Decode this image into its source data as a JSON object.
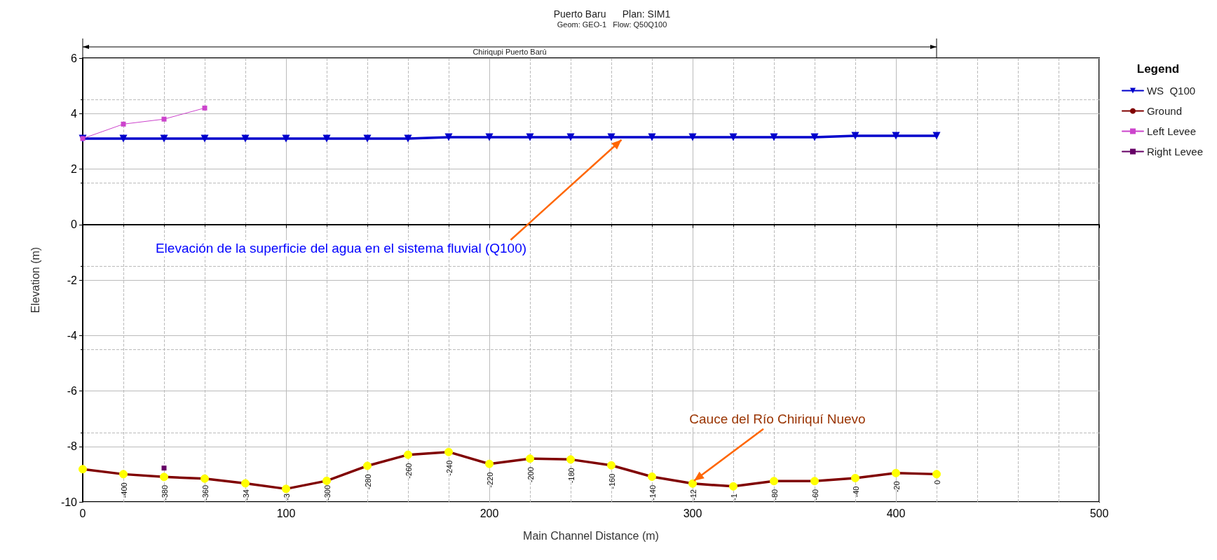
{
  "chart_data": {
    "type": "line",
    "title": "Puerto Baru      Plan: SIM1",
    "subtitle": "Geom: GEO-1   Flow: Q50Q100",
    "xlabel": "Main Channel Distance (m)",
    "ylabel": "Elevation (m)",
    "legend_title": "Legend",
    "x": [
      0,
      20,
      40,
      60,
      80,
      100,
      120,
      140,
      160,
      180,
      200,
      220,
      240,
      260,
      280,
      300,
      320,
      340,
      360,
      380,
      400,
      420
    ],
    "series": [
      {
        "name": "WS  Q100",
        "color": "#0000cc",
        "marker": "triangle",
        "values": [
          3.1,
          3.1,
          3.1,
          3.1,
          3.1,
          3.1,
          3.1,
          3.1,
          3.1,
          3.15,
          3.15,
          3.15,
          3.15,
          3.15,
          3.15,
          3.15,
          3.15,
          3.15,
          3.15,
          3.2,
          3.2,
          3.2
        ]
      },
      {
        "name": "Ground",
        "color": "#800000",
        "marker": "circle",
        "values": [
          -8.82,
          -9.0,
          -9.1,
          -9.16,
          -9.33,
          -9.53,
          -9.24,
          -8.7,
          -8.3,
          -8.2,
          -8.63,
          -8.44,
          -8.47,
          -8.68,
          -9.09,
          -9.34,
          -9.44,
          -9.25,
          -9.25,
          -9.14,
          -8.96,
          -9.0
        ]
      },
      {
        "name": "Left Levee",
        "color": "#cc44cc",
        "marker": "square",
        "values": [
          3.1,
          3.62,
          3.8,
          4.2,
          null,
          null,
          null,
          null,
          null,
          null,
          null,
          null,
          null,
          null,
          null,
          null,
          null,
          null,
          null,
          null,
          null,
          null
        ]
      },
      {
        "name": "Right Levee",
        "color": "#660066",
        "marker": "square",
        "values": [
          null,
          null,
          -8.78,
          null,
          null,
          null,
          null,
          null,
          null,
          null,
          null,
          null,
          null,
          null,
          null,
          null,
          null,
          null,
          null,
          null,
          null,
          null
        ]
      }
    ],
    "xlim": [
      0,
      500
    ],
    "xticks": [
      0,
      100,
      200,
      300,
      400,
      500
    ],
    "ylim": [
      -10,
      6
    ],
    "yticks": [
      -10,
      -8,
      -6,
      -4,
      -2,
      0,
      2,
      4,
      6
    ],
    "grid": true,
    "legend": "right",
    "line_style": "solid",
    "annotations": [
      {
        "text": "Elevación de la superficie del agua en el sistema fluvial (Q100)",
        "x": 265,
        "y": 3.13
      },
      {
        "text": "Cauce del Río Chiriquí Nuevo",
        "x": 300,
        "y": -9.34
      },
      "Chiriqupi Puerto Barú",
      {
        "text": "-400",
        "x": 20,
        "y": -9.0
      },
      {
        "text": "-380",
        "x": 40,
        "y": -9.1
      },
      {
        "text": "-360",
        "x": 60,
        "y": -9.16
      },
      {
        "text": "-34",
        "x": 80,
        "y": -9.33
      },
      {
        "text": "-3",
        "x": 100,
        "y": -9.53
      },
      {
        "text": "-300",
        "x": 120,
        "y": -9.24
      },
      {
        "text": "-280",
        "x": 140,
        "y": -8.7
      },
      {
        "text": "-260",
        "x": 160,
        "y": -8.3
      },
      {
        "text": "-240",
        "x": 180,
        "y": -8.2
      },
      {
        "text": "-220",
        "x": 200,
        "y": -8.63
      },
      {
        "text": "-200",
        "x": 220,
        "y": -8.44
      },
      {
        "text": "-180",
        "x": 240,
        "y": -8.47
      },
      {
        "text": "-160",
        "x": 260,
        "y": -8.68
      },
      {
        "text": "-140",
        "x": 280,
        "y": -9.09
      },
      {
        "text": "-12",
        "x": 300,
        "y": -9.34
      },
      {
        "text": "-1",
        "x": 320,
        "y": -9.44
      },
      {
        "text": "-80",
        "x": 340,
        "y": -9.25
      },
      {
        "text": "-60",
        "x": 360,
        "y": -9.25
      },
      {
        "text": "-40",
        "x": 380,
        "y": -9.14
      },
      {
        "text": "-20",
        "x": 400,
        "y": -8.96
      },
      {
        "text": "0",
        "x": 420,
        "y": -9.0
      }
    ]
  }
}
